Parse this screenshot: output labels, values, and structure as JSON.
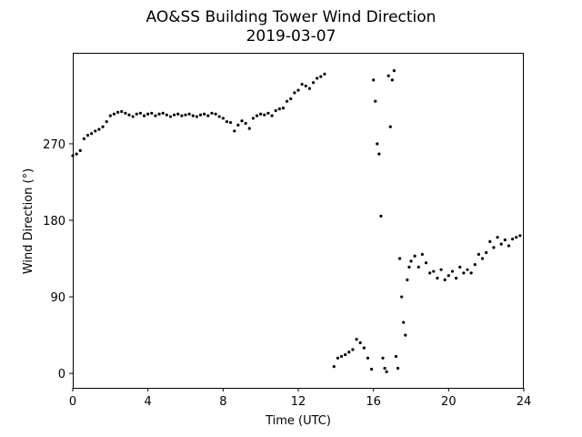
{
  "chart_data": {
    "type": "scatter",
    "title": "AO&SS Building Tower Wind Direction",
    "subtitle": "2019-03-07",
    "xlabel": "Time (UTC)",
    "ylabel": "Wind Direction (°)",
    "xlim": [
      0,
      24
    ],
    "ylim": [
      -17,
      377
    ],
    "xticks": [
      0,
      4,
      8,
      12,
      16,
      20,
      24
    ],
    "yticks": [
      0,
      90,
      180,
      270
    ],
    "grid": false,
    "marker_color": "#000000",
    "series": [
      {
        "points": [
          [
            0.0,
            256
          ],
          [
            0.2,
            258
          ],
          [
            0.4,
            262
          ],
          [
            0.6,
            276
          ],
          [
            0.8,
            280
          ],
          [
            1.0,
            282
          ],
          [
            1.2,
            285
          ],
          [
            1.4,
            287
          ],
          [
            1.6,
            290
          ],
          [
            1.8,
            296
          ],
          [
            2.0,
            303
          ],
          [
            2.2,
            305
          ],
          [
            2.4,
            307
          ],
          [
            2.6,
            308
          ],
          [
            2.8,
            306
          ],
          [
            3.0,
            304
          ],
          [
            3.2,
            302
          ],
          [
            3.4,
            305
          ],
          [
            3.6,
            306
          ],
          [
            3.8,
            303
          ],
          [
            4.0,
            305
          ],
          [
            4.2,
            306
          ],
          [
            4.4,
            303
          ],
          [
            4.6,
            305
          ],
          [
            4.8,
            306
          ],
          [
            5.0,
            304
          ],
          [
            5.2,
            302
          ],
          [
            5.4,
            304
          ],
          [
            5.6,
            305
          ],
          [
            5.8,
            303
          ],
          [
            6.0,
            304
          ],
          [
            6.2,
            305
          ],
          [
            6.4,
            303
          ],
          [
            6.6,
            302
          ],
          [
            6.8,
            304
          ],
          [
            7.0,
            305
          ],
          [
            7.2,
            303
          ],
          [
            7.4,
            306
          ],
          [
            7.6,
            305
          ],
          [
            7.8,
            302
          ],
          [
            8.0,
            300
          ],
          [
            8.2,
            296
          ],
          [
            8.4,
            295
          ],
          [
            8.6,
            285
          ],
          [
            8.8,
            292
          ],
          [
            9.0,
            297
          ],
          [
            9.2,
            294
          ],
          [
            9.4,
            288
          ],
          [
            9.6,
            300
          ],
          [
            9.8,
            303
          ],
          [
            10.0,
            305
          ],
          [
            10.2,
            304
          ],
          [
            10.4,
            306
          ],
          [
            10.6,
            303
          ],
          [
            10.8,
            309
          ],
          [
            11.0,
            311
          ],
          [
            11.2,
            312
          ],
          [
            11.4,
            320
          ],
          [
            11.6,
            323
          ],
          [
            11.8,
            330
          ],
          [
            12.0,
            333
          ],
          [
            12.2,
            340
          ],
          [
            12.4,
            338
          ],
          [
            12.6,
            335
          ],
          [
            12.8,
            342
          ],
          [
            13.0,
            347
          ],
          [
            13.2,
            349
          ],
          [
            13.4,
            352
          ],
          [
            13.9,
            8
          ],
          [
            14.1,
            18
          ],
          [
            14.3,
            20
          ],
          [
            14.5,
            22
          ],
          [
            14.7,
            25
          ],
          [
            14.9,
            28
          ],
          [
            15.1,
            40
          ],
          [
            15.3,
            36
          ],
          [
            15.5,
            30
          ],
          [
            15.7,
            18
          ],
          [
            15.9,
            5
          ],
          [
            16.0,
            345
          ],
          [
            16.1,
            320
          ],
          [
            16.2,
            270
          ],
          [
            16.3,
            258
          ],
          [
            16.4,
            185
          ],
          [
            16.5,
            18
          ],
          [
            16.6,
            6
          ],
          [
            16.7,
            2
          ],
          [
            16.8,
            350
          ],
          [
            16.9,
            290
          ],
          [
            17.0,
            345
          ],
          [
            17.1,
            356
          ],
          [
            17.2,
            20
          ],
          [
            17.3,
            6
          ],
          [
            17.4,
            135
          ],
          [
            17.5,
            90
          ],
          [
            17.6,
            60
          ],
          [
            17.7,
            45
          ],
          [
            17.8,
            110
          ],
          [
            17.9,
            125
          ],
          [
            18.0,
            132
          ],
          [
            18.2,
            138
          ],
          [
            18.4,
            125
          ],
          [
            18.6,
            140
          ],
          [
            18.8,
            130
          ],
          [
            19.0,
            118
          ],
          [
            19.2,
            120
          ],
          [
            19.4,
            112
          ],
          [
            19.6,
            122
          ],
          [
            19.8,
            110
          ],
          [
            20.0,
            115
          ],
          [
            20.2,
            120
          ],
          [
            20.4,
            112
          ],
          [
            20.6,
            125
          ],
          [
            20.8,
            118
          ],
          [
            21.0,
            122
          ],
          [
            21.2,
            118
          ],
          [
            21.4,
            128
          ],
          [
            21.6,
            140
          ],
          [
            21.8,
            135
          ],
          [
            22.0,
            142
          ],
          [
            22.2,
            155
          ],
          [
            22.4,
            148
          ],
          [
            22.6,
            160
          ],
          [
            22.8,
            152
          ],
          [
            23.0,
            157
          ],
          [
            23.2,
            150
          ],
          [
            23.4,
            158
          ],
          [
            23.6,
            160
          ],
          [
            23.8,
            162
          ]
        ]
      }
    ]
  }
}
